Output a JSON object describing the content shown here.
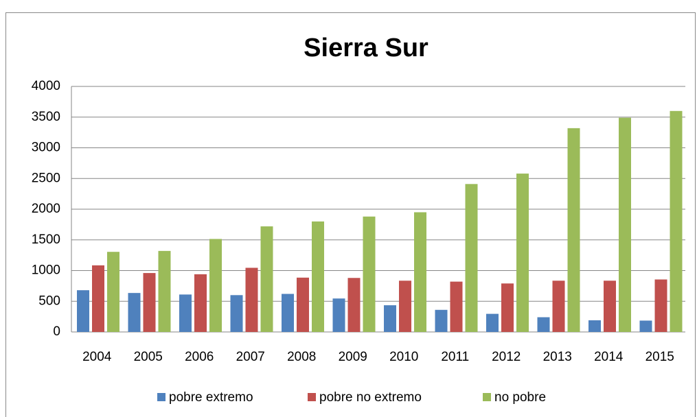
{
  "chart_data": {
    "type": "bar",
    "title": "Sierra Sur",
    "categories": [
      "2004",
      "2005",
      "2006",
      "2007",
      "2008",
      "2009",
      "2010",
      "2011",
      "2012",
      "2013",
      "2014",
      "2015"
    ],
    "series": [
      {
        "name": "pobre extremo",
        "color": "#4f81bd",
        "values": [
          680,
          635,
          610,
          600,
          620,
          545,
          435,
          360,
          295,
          240,
          190,
          185
        ]
      },
      {
        "name": "pobre no extremo",
        "color": "#c0504d",
        "values": [
          1085,
          960,
          940,
          1045,
          885,
          880,
          835,
          820,
          790,
          835,
          835,
          855
        ]
      },
      {
        "name": "no pobre",
        "color": "#9bbb59",
        "values": [
          1305,
          1320,
          1515,
          1720,
          1800,
          1880,
          1950,
          2410,
          2580,
          3320,
          3490,
          3600
        ]
      }
    ],
    "ylim": [
      0,
      4000
    ],
    "yticks": [
      0,
      500,
      1000,
      1500,
      2000,
      2500,
      3000,
      3500,
      4000
    ],
    "grid": true,
    "legend": "bottom"
  }
}
